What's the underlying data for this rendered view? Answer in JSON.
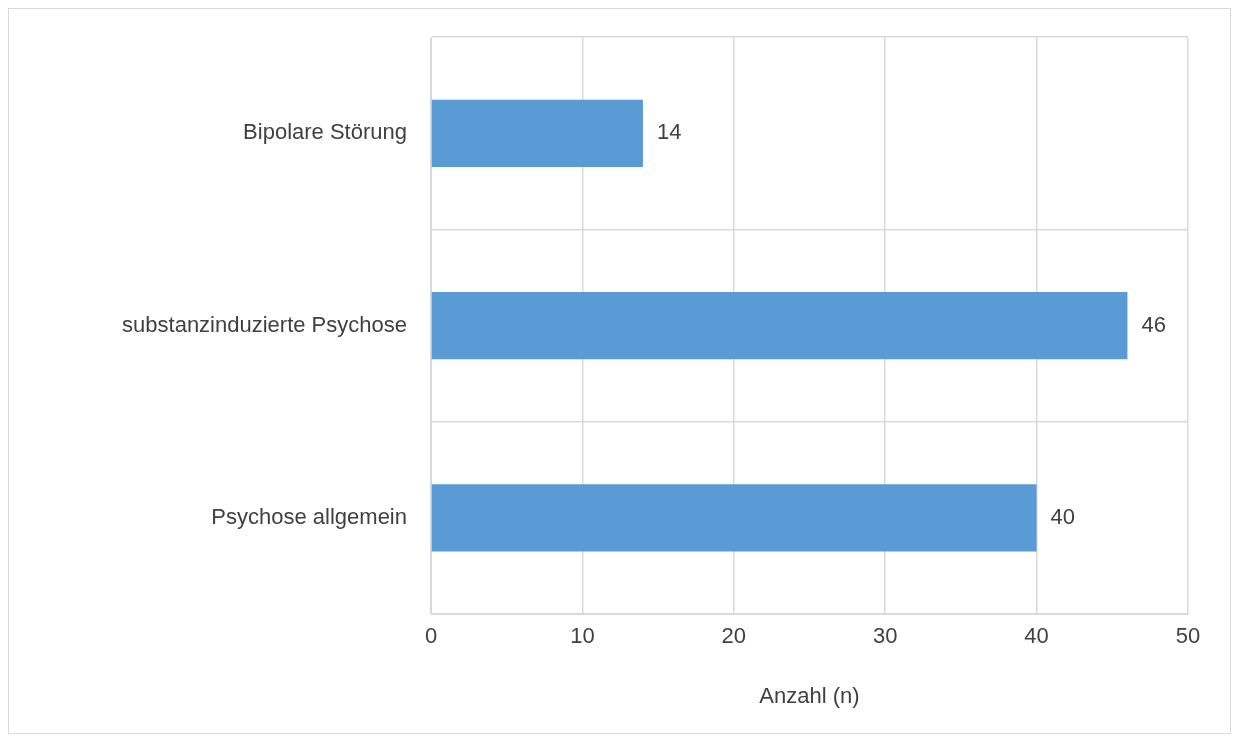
{
  "chart_data": {
    "type": "bar",
    "orientation": "horizontal",
    "categories": [
      "Bipolare Störung",
      "substanzinduzierte Psychose",
      "Psychose allgemein"
    ],
    "values": [
      14,
      46,
      40
    ],
    "color": "#5b9bd5",
    "xlabel": "Anzahl (n)",
    "xlim": [
      0,
      50
    ],
    "xticks": [
      0,
      10,
      20,
      30,
      40,
      50
    ],
    "grid": true,
    "data_labels": true
  }
}
